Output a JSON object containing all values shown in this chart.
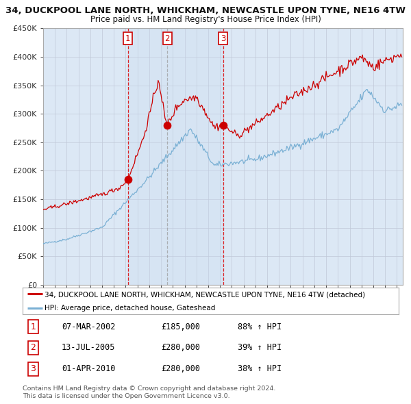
{
  "title": "34, DUCKPOOL LANE NORTH, WHICKHAM, NEWCASTLE UPON TYNE, NE16 4TW",
  "subtitle": "Price paid vs. HM Land Registry's House Price Index (HPI)",
  "sale_dates_num": [
    2002.18,
    2005.53,
    2010.25
  ],
  "sale_prices": [
    185000,
    280000,
    280000
  ],
  "sale_labels": [
    "1",
    "2",
    "3"
  ],
  "red_line_color": "#cc0000",
  "blue_line_color": "#7ab0d4",
  "plot_bg": "#dce8f5",
  "grid_color": "#c0c8d8",
  "ylabel_color": "#333333",
  "title_color": "#111111",
  "vline_color_red": "#dd0000",
  "vline_color_gray": "#999999",
  "span_color": "#c8daf0",
  "legend_line1": "34, DUCKPOOL LANE NORTH, WHICKHAM, NEWCASTLE UPON TYNE, NE16 4TW (detached)",
  "legend_line2": "HPI: Average price, detached house, Gateshead",
  "table_rows": [
    [
      "1",
      "07-MAR-2002",
      "£185,000",
      "88% ↑ HPI"
    ],
    [
      "2",
      "13-JUL-2005",
      "£280,000",
      "39% ↑ HPI"
    ],
    [
      "3",
      "01-APR-2010",
      "£280,000",
      "38% ↑ HPI"
    ]
  ],
  "footer": "Contains HM Land Registry data © Crown copyright and database right 2024.\nThis data is licensed under the Open Government Licence v3.0.",
  "ylim": [
    0,
    450000
  ],
  "xlim_start": 1995.0,
  "xlim_end": 2025.5
}
